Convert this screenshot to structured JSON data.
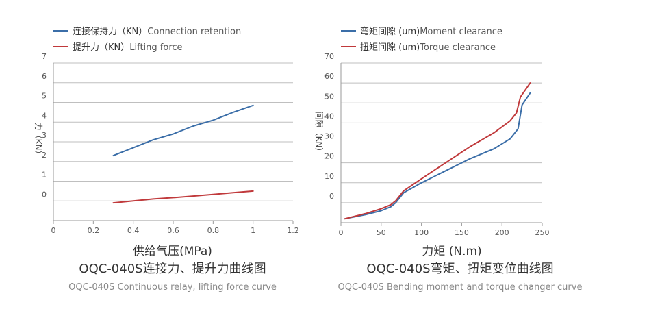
{
  "colors": {
    "blue": "#3b6ea8",
    "red": "#c0393b"
  },
  "chart_data": [
    {
      "type": "line",
      "legend": [
        {
          "cn": "连接保持力（KN）",
          "en": "Connection retention"
        },
        {
          "cn": "提升力（KN）",
          "en": "Lifting force"
        }
      ],
      "xlabel": "供给气压(MPa)",
      "ylabel": "力（KN）",
      "title": "OQC-040S连接力、提升力曲线图",
      "subtitle": "OQC-040S Continuous relay, lifting force curve",
      "xlim": [
        0,
        1.2
      ],
      "ylim": [
        -1,
        7
      ],
      "x_ticks": [
        0,
        0.2,
        0.4,
        0.6,
        0.8,
        1,
        1.2
      ],
      "x_tick_labels": [
        "0",
        "0.2",
        "0.4",
        "0.6",
        "0.8",
        "1",
        "1.2"
      ],
      "y_ticks": [
        0,
        1,
        2,
        3,
        4,
        5,
        6,
        7
      ],
      "y_tick_labels": [
        "0",
        "1",
        "2",
        "3",
        "4",
        "5",
        "6",
        "7"
      ],
      "series": [
        {
          "name": "Connection retention",
          "color": "#3b6ea8",
          "x": [
            0.3,
            0.4,
            0.5,
            0.6,
            0.7,
            0.8,
            0.9,
            1.0
          ],
          "values": [
            2.3,
            2.7,
            3.1,
            3.4,
            3.8,
            4.1,
            4.5,
            4.85
          ]
        },
        {
          "name": "Lifting force",
          "color": "#c0393b",
          "x": [
            0.3,
            0.4,
            0.5,
            0.6,
            0.7,
            0.8,
            0.9,
            1.0
          ],
          "values": [
            -0.1,
            0.0,
            0.1,
            0.17,
            0.25,
            0.33,
            0.42,
            0.5
          ]
        }
      ]
    },
    {
      "type": "line",
      "legend": [
        {
          "cn": "弯矩间隙 (um)",
          "en": "Moment clearance"
        },
        {
          "cn": "扭矩间隙 (um)",
          "en": "Torque clearance"
        }
      ],
      "xlabel": "力矩 (N.m)",
      "ylabel": "间隙（KN）",
      "title": "OQC-040S弯矩、扭矩变位曲线图",
      "subtitle": "OQC-040S Bending moment and torque changer curve",
      "xlim": [
        0,
        250
      ],
      "ylim": [
        -10,
        70
      ],
      "x_ticks": [
        0,
        50,
        100,
        150,
        200,
        250
      ],
      "x_tick_labels": [
        "0",
        "50",
        "100",
        "150",
        "200",
        "250"
      ],
      "y_ticks": [
        0,
        10,
        20,
        30,
        40,
        50,
        60,
        70
      ],
      "y_tick_labels": [
        "0",
        "10",
        "20",
        "30",
        "40",
        "50",
        "60",
        "70"
      ],
      "series": [
        {
          "name": "Moment clearance",
          "color": "#3b6ea8",
          "x": [
            5,
            30,
            50,
            62,
            68,
            78,
            100,
            130,
            160,
            190,
            210,
            220,
            225,
            235
          ],
          "values": [
            -8,
            -6,
            -4,
            -2,
            0,
            5,
            10,
            16,
            22,
            27,
            32,
            37,
            49,
            55
          ]
        },
        {
          "name": "Torque clearance",
          "color": "#c0393b",
          "x": [
            5,
            30,
            50,
            62,
            68,
            78,
            100,
            130,
            160,
            190,
            210,
            218,
            223,
            235
          ],
          "values": [
            -8,
            -5.5,
            -3,
            -1,
            1,
            6,
            12,
            20,
            28,
            35,
            41,
            45,
            53,
            60
          ]
        }
      ]
    }
  ]
}
